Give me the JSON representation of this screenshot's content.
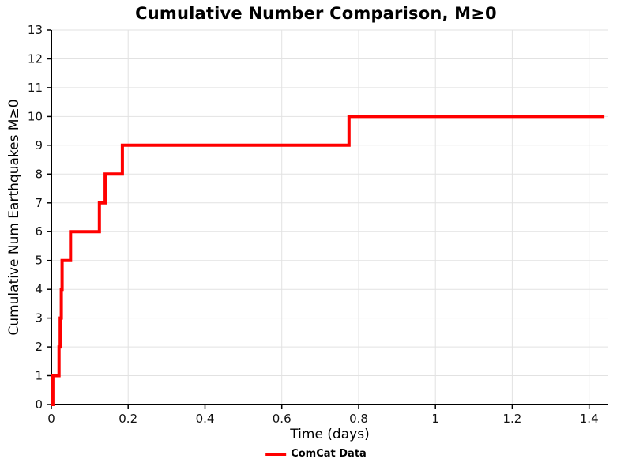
{
  "chart_data": {
    "type": "line",
    "subtype": "cumulative-step",
    "title": "Cumulative Number Comparison, M≥0",
    "xlabel": "Time (days)",
    "ylabel": "Cumulative Num Earthquakes M≥0",
    "xlim": [
      0,
      1.45
    ],
    "ylim": [
      0,
      13
    ],
    "xticks": [
      0,
      0.2,
      0.4,
      0.6,
      0.8,
      1,
      1.2,
      1.4
    ],
    "yticks": [
      0,
      1,
      2,
      3,
      4,
      5,
      6,
      7,
      8,
      9,
      10,
      11,
      12,
      13
    ],
    "grid": true,
    "grid_color": "#e2e2e2",
    "axis_color": "#000000",
    "legend_position": "bottom-center",
    "series": [
      {
        "name": "ComCat Data",
        "color": "#ff0000",
        "line_width": 4,
        "start": [
          0,
          0
        ],
        "events": [
          [
            0.004,
            1
          ],
          [
            0.02,
            2
          ],
          [
            0.023,
            3
          ],
          [
            0.026,
            4
          ],
          [
            0.028,
            5
          ],
          [
            0.05,
            6
          ],
          [
            0.125,
            7
          ],
          [
            0.14,
            8
          ],
          [
            0.185,
            9
          ],
          [
            0.775,
            10
          ]
        ],
        "x_end": 1.44
      }
    ]
  }
}
